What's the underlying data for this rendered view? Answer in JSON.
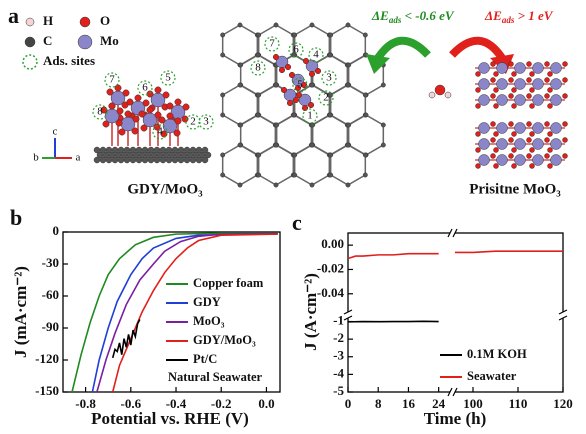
{
  "panel_a": {
    "label": "a",
    "legend": [
      {
        "label": "H"
      },
      {
        "label": "O"
      },
      {
        "label": "C"
      },
      {
        "label": "Mo"
      },
      {
        "label": "Ads. sites"
      }
    ],
    "left_structure": {
      "title": "GDY/MoO₃",
      "sites": [
        "7",
        "5",
        "6",
        "8",
        "4",
        "2",
        "3"
      ],
      "axes": [
        "c",
        "b",
        "a"
      ]
    },
    "middle_sites": [
      "8",
      "7",
      "6",
      "4",
      "3",
      "5",
      "2",
      "1"
    ],
    "arrows": [
      {
        "symbol": "ΔE",
        "sub": "ads",
        "text": " < -0.6 eV"
      },
      {
        "symbol": "ΔE",
        "sub": "ads",
        "text": " > 1 eV"
      }
    ],
    "right_title": "Prisitne MoO₃"
  },
  "chart_data": [
    {
      "type": "line",
      "label": "b",
      "xlabel": "Potential vs. RHE (V)",
      "ylabel": "J (mA·cm⁻²)",
      "xlim": [
        -0.9,
        0.06
      ],
      "xticks": [
        -0.8,
        -0.6,
        -0.4,
        -0.2,
        {
          "value": 0,
          "label": "0.0"
        }
      ],
      "ylim": [
        -150,
        0
      ],
      "yticks": [
        0,
        -30,
        -60,
        -90,
        -120,
        -150
      ],
      "annotation": "Natural Seawater",
      "series": [
        {
          "name": "Copper foam",
          "color": "#1f8a1f",
          "x": [
            -0.86,
            -0.82,
            -0.78,
            -0.74,
            -0.7,
            -0.65,
            -0.58,
            -0.5,
            -0.4,
            -0.2,
            0.05
          ],
          "values": [
            -150,
            -115,
            -85,
            -60,
            -40,
            -25,
            -12,
            -5,
            -2,
            -1,
            -1
          ]
        },
        {
          "name": "GDY",
          "color": "#1f3fd6",
          "x": [
            -0.77,
            -0.74,
            -0.7,
            -0.66,
            -0.6,
            -0.55,
            -0.5,
            -0.4,
            -0.3,
            -0.1,
            0.05
          ],
          "values": [
            -150,
            -120,
            -90,
            -65,
            -40,
            -25,
            -15,
            -6,
            -3,
            -2,
            -2
          ]
        },
        {
          "name": "MoO₃",
          "color": "#7b1fa2",
          "x": [
            -0.75,
            -0.71,
            -0.67,
            -0.62,
            -0.56,
            -0.5,
            -0.45,
            -0.38,
            -0.3,
            -0.2,
            0.05
          ],
          "values": [
            -150,
            -120,
            -95,
            -68,
            -45,
            -30,
            -18,
            -9,
            -4,
            -2,
            -1.5
          ]
        },
        {
          "name": "GDY/MoO₃",
          "color": "#e0201b",
          "x": [
            -0.68,
            -0.65,
            -0.6,
            -0.55,
            -0.5,
            -0.45,
            -0.4,
            -0.35,
            -0.3,
            -0.2,
            0.05
          ],
          "values": [
            -150,
            -125,
            -100,
            -75,
            -55,
            -38,
            -25,
            -15,
            -8,
            -3,
            -2
          ]
        },
        {
          "name": "Pt/C",
          "color": "#000000",
          "x": [
            -0.68,
            -0.67,
            -0.66,
            -0.65,
            -0.64,
            -0.63,
            -0.62,
            -0.61,
            -0.6,
            -0.59,
            -0.58,
            -0.57,
            -0.56
          ],
          "values": [
            -118,
            -110,
            -112,
            -104,
            -115,
            -100,
            -108,
            -96,
            -106,
            -92,
            -98,
            -86,
            -82
          ]
        }
      ]
    },
    {
      "type": "line",
      "label": "c",
      "xlabel": "Time (h)",
      "ylabel": "J (A·cm⁻²)",
      "x_segments": [
        {
          "xlim": [
            0,
            27
          ],
          "xticks": [
            0,
            8,
            16,
            24
          ]
        },
        {
          "xlim": [
            96,
            120
          ],
          "xticks": [
            100,
            110,
            120
          ]
        }
      ],
      "y_segments": [
        {
          "ylim": [
            -0.055,
            0.01
          ],
          "yticks": [
            {
              "value": 0,
              "label": "0.00"
            },
            -0.02,
            -0.04
          ]
        },
        {
          "ylim": [
            -5,
            -0.8
          ],
          "yticks": [
            -1,
            -2,
            -3,
            -4,
            -5
          ]
        }
      ],
      "series": [
        {
          "name": "0.1M KOH",
          "color": "#000000",
          "x": [
            0,
            4,
            8,
            12,
            16,
            20,
            24
          ],
          "values": [
            -1.02,
            -1.0,
            -1.01,
            -1.0,
            -1.0,
            -0.99,
            -1.0
          ]
        },
        {
          "name": "Seawater",
          "color": "#e0201b",
          "x": [
            0,
            2,
            4,
            8,
            12,
            16,
            20,
            24,
            96,
            100,
            105,
            110,
            115,
            120
          ],
          "values": [
            -0.011,
            -0.009,
            -0.009,
            -0.008,
            -0.008,
            -0.007,
            -0.007,
            -0.007,
            -0.006,
            -0.006,
            -0.005,
            -0.005,
            -0.005,
            -0.005
          ]
        }
      ]
    }
  ]
}
